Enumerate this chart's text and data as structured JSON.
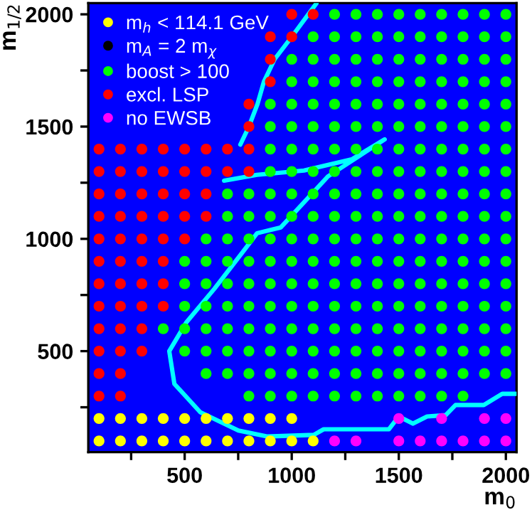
{
  "chart_data": {
    "type": "scatter",
    "xlabel": "m$_{0}$",
    "ylabel": "m$_{1/2}$",
    "xlim": [
      50,
      2050
    ],
    "ylim": [
      50,
      2050
    ],
    "xticks": [
      {
        "value": 250,
        "label": null
      },
      500,
      {
        "value": 750,
        "label": null
      },
      1000,
      {
        "value": 1250,
        "label": null
      },
      1500,
      {
        "value": 1750,
        "label": null
      },
      2000
    ],
    "yticks": [
      {
        "value": 250,
        "label": null
      },
      500,
      {
        "value": 750,
        "label": null
      },
      1000,
      {
        "value": 1250,
        "label": null
      },
      1500,
      {
        "value": 1750,
        "label": null
      },
      2000
    ],
    "legend": "top left",
    "series": [
      {
        "name": "m$_{h}$ < 114.1 GeV",
        "color": "#ffff00",
        "marker": "circle",
        "x": [
          100,
          200,
          300,
          400,
          500,
          600,
          700,
          800,
          900,
          1000,
          100,
          200,
          300,
          400,
          500,
          600,
          700,
          800,
          900,
          1000,
          1100
        ],
        "values": [
          200,
          200,
          200,
          200,
          200,
          200,
          200,
          200,
          200,
          200,
          100,
          100,
          100,
          100,
          100,
          100,
          100,
          100,
          100,
          100,
          100
        ]
      },
      {
        "name": "m$_{A}$ = 2 m$_{χ}$",
        "color": "#000000",
        "marker": "circle"
      },
      {
        "name": "boost > 100",
        "color": "#00ff00",
        "marker": "circle",
        "x": [
          1200,
          1300,
          1400,
          1500,
          1600,
          1700,
          1800,
          1900,
          2000,
          1100,
          1200,
          1300,
          1400,
          1500,
          1600,
          1700,
          1800,
          1900,
          2000,
          1000,
          1100,
          1200,
          1300,
          1400,
          1500,
          1600,
          1700,
          1800,
          1900,
          2000,
          1000,
          1100,
          1200,
          1300,
          1400,
          1500,
          1600,
          1700,
          1800,
          1900,
          2000,
          900,
          1000,
          1100,
          1200,
          1300,
          1400,
          1500,
          1600,
          1700,
          1800,
          1900,
          2000,
          900,
          1000,
          1100,
          1200,
          1300,
          1400,
          1500,
          1600,
          1700,
          1800,
          1900,
          2000,
          900,
          1000,
          1100,
          1200,
          1300,
          1400,
          1500,
          1600,
          1700,
          1800,
          1900,
          2000,
          900,
          1000,
          1100,
          1200,
          1300,
          1400,
          1500,
          1600,
          1700,
          1800,
          1900,
          2000,
          700,
          800,
          900,
          1000,
          1100,
          1200,
          1300,
          1400,
          1500,
          1600,
          1700,
          1800,
          1900,
          2000,
          700,
          800,
          900,
          1000,
          1100,
          1200,
          1300,
          1400,
          1500,
          1600,
          1700,
          1800,
          1900,
          2000,
          600,
          700,
          800,
          900,
          1000,
          1100,
          1200,
          1300,
          1400,
          1500,
          1600,
          1700,
          1800,
          1900,
          2000,
          500,
          600,
          700,
          800,
          900,
          1000,
          1100,
          1200,
          1300,
          1400,
          1500,
          1600,
          1700,
          1800,
          1900,
          2000,
          500,
          600,
          700,
          800,
          900,
          1000,
          1100,
          1200,
          1300,
          1400,
          1500,
          1600,
          1700,
          1800,
          1900,
          2000,
          500,
          600,
          700,
          800,
          900,
          1000,
          1100,
          1200,
          1300,
          1400,
          1500,
          1600,
          1700,
          1800,
          1900,
          2000,
          400,
          500,
          600,
          700,
          800,
          900,
          1000,
          1100,
          1200,
          1300,
          1400,
          1500,
          1600,
          1700,
          1800,
          1900,
          2000,
          500,
          600,
          700,
          800,
          900,
          1000,
          1100,
          1200,
          1300,
          1400,
          1500,
          1600,
          1700,
          1800,
          1900,
          2000,
          600,
          700,
          800,
          900,
          1000,
          1100,
          1200,
          1300,
          1400,
          1500,
          1600,
          1700,
          1800,
          1900,
          2000,
          800,
          900,
          1000,
          1100,
          1200,
          1300,
          1400,
          1500,
          1600,
          1700,
          1800
        ],
        "values": [
          2000,
          2000,
          2000,
          2000,
          2000,
          2000,
          2000,
          2000,
          2000,
          1900,
          1900,
          1900,
          1900,
          1900,
          1900,
          1900,
          1900,
          1900,
          1900,
          1800,
          1800,
          1800,
          1800,
          1800,
          1800,
          1800,
          1800,
          1800,
          1800,
          1800,
          1700,
          1700,
          1700,
          1700,
          1700,
          1700,
          1700,
          1700,
          1700,
          1700,
          1700,
          1600,
          1600,
          1600,
          1600,
          1600,
          1600,
          1600,
          1600,
          1600,
          1600,
          1600,
          1600,
          1500,
          1500,
          1500,
          1500,
          1500,
          1500,
          1500,
          1500,
          1500,
          1500,
          1500,
          1500,
          1400,
          1400,
          1400,
          1400,
          1400,
          1400,
          1400,
          1400,
          1400,
          1400,
          1400,
          1400,
          1300,
          1300,
          1300,
          1300,
          1300,
          1300,
          1300,
          1300,
          1300,
          1300,
          1300,
          1300,
          1200,
          1200,
          1200,
          1200,
          1200,
          1200,
          1200,
          1200,
          1200,
          1200,
          1200,
          1200,
          1200,
          1200,
          1100,
          1100,
          1100,
          1100,
          1100,
          1100,
          1100,
          1100,
          1100,
          1100,
          1100,
          1100,
          1100,
          1100,
          1000,
          1000,
          1000,
          1000,
          1000,
          1000,
          1000,
          1000,
          1000,
          1000,
          1000,
          1000,
          1000,
          1000,
          1000,
          900,
          900,
          900,
          900,
          900,
          900,
          900,
          900,
          900,
          900,
          900,
          900,
          900,
          900,
          900,
          900,
          800,
          800,
          800,
          800,
          800,
          800,
          800,
          800,
          800,
          800,
          800,
          800,
          800,
          800,
          800,
          800,
          700,
          700,
          700,
          700,
          700,
          700,
          700,
          700,
          700,
          700,
          700,
          700,
          700,
          700,
          700,
          700,
          600,
          600,
          600,
          600,
          600,
          600,
          600,
          600,
          600,
          600,
          600,
          600,
          600,
          600,
          600,
          600,
          600,
          500,
          500,
          500,
          500,
          500,
          500,
          500,
          500,
          500,
          500,
          500,
          500,
          500,
          500,
          500,
          500,
          400,
          400,
          400,
          400,
          400,
          400,
          400,
          400,
          400,
          400,
          400,
          400,
          400,
          400,
          400,
          300,
          300,
          300,
          300,
          300,
          300,
          300,
          300,
          300,
          300,
          300
        ]
      },
      {
        "name": "excl. LSP",
        "color": "#ff0000",
        "marker": "circle",
        "x": [
          1000,
          1100,
          900,
          1000,
          900,
          900,
          800,
          800,
          100,
          200,
          300,
          400,
          500,
          600,
          700,
          800,
          100,
          200,
          300,
          400,
          500,
          600,
          700,
          800,
          100,
          200,
          300,
          400,
          500,
          600,
          100,
          200,
          300,
          400,
          500,
          600,
          100,
          200,
          300,
          400,
          500,
          100,
          200,
          300,
          400,
          100,
          200,
          300,
          400,
          100,
          200,
          300,
          400,
          100,
          200,
          300,
          100,
          200,
          300,
          100,
          200,
          100,
          200
        ],
        "values": [
          2000,
          2000,
          1900,
          1900,
          1800,
          1700,
          1600,
          1500,
          1400,
          1400,
          1400,
          1400,
          1400,
          1400,
          1400,
          1400,
          1300,
          1300,
          1300,
          1300,
          1300,
          1300,
          1300,
          1300,
          1200,
          1200,
          1200,
          1200,
          1200,
          1200,
          1100,
          1100,
          1100,
          1100,
          1100,
          1100,
          1000,
          1000,
          1000,
          1000,
          1000,
          900,
          900,
          900,
          900,
          800,
          800,
          800,
          800,
          700,
          700,
          700,
          700,
          600,
          600,
          600,
          500,
          500,
          500,
          400,
          400,
          300,
          300
        ]
      },
      {
        "name": "no EWSB",
        "color": "#ff00ff",
        "marker": "circle",
        "x": [
          1500,
          1700,
          1900,
          2000,
          1200,
          1300,
          1500,
          1600,
          1700,
          1800,
          1900,
          2000
        ],
        "values": [
          200,
          200,
          200,
          200,
          100,
          100,
          100,
          100,
          100,
          100,
          100,
          100
        ]
      },
      {
        "type": "line",
        "color": "#00ffff",
        "marker": "none",
        "x": [
          684,
          838,
          1057,
          1280,
          1434,
          1169,
          949,
          838,
          778,
          639,
          507,
          428,
          452,
          573,
          751,
          884,
          1103,
          1149,
          1454,
          1500,
          1566,
          1632,
          1719,
          1765,
          1897,
          1983,
          2050
        ],
        "values": [
          1259,
          1285,
          1304,
          1354,
          1443,
          1278,
          1051,
          1025,
          950,
          778,
          627,
          500,
          354,
          228,
          146,
          120,
          127,
          152,
          152,
          209,
          177,
          209,
          215,
          260,
          260,
          310,
          310
        ]
      },
      {
        "type": "line",
        "color": "#00ffff",
        "marker": "none",
        "x": [
          1116,
          1000,
          920,
          870,
          840,
          800,
          760
        ],
        "values": [
          2050,
          1900,
          1800,
          1700,
          1600,
          1500,
          1420
        ]
      }
    ]
  }
}
